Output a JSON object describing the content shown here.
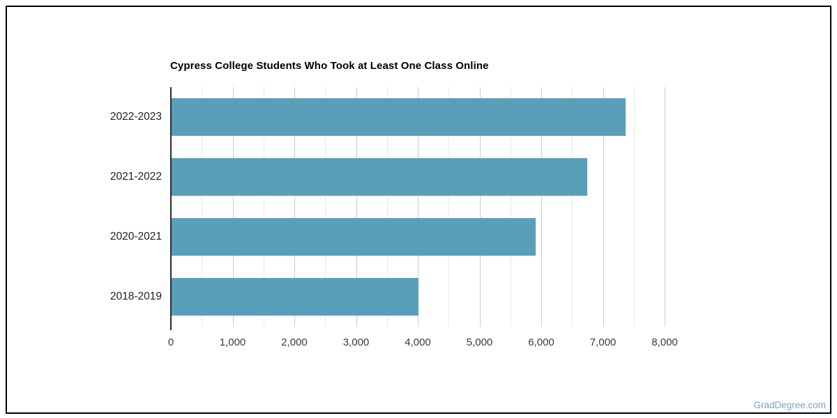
{
  "page": {
    "watermark": "GradDegree.com",
    "frame_border_color": "#000000",
    "background_color": "#ffffff"
  },
  "chart_data": {
    "type": "bar",
    "orientation": "horizontal",
    "title": "Cypress College Students Who Took at Least One Class Online",
    "categories": [
      "2022-2023",
      "2021-2022",
      "2020-2021",
      "2018-2019"
    ],
    "values": [
      7350,
      6730,
      5900,
      4000
    ],
    "xlabel": "",
    "ylabel": "",
    "xlim": [
      0,
      8000
    ],
    "xticks": [
      0,
      1000,
      2000,
      3000,
      4000,
      5000,
      6000,
      7000,
      8000
    ],
    "xtick_labels": [
      "0",
      "1,000",
      "2,000",
      "3,000",
      "4,000",
      "5,000",
      "6,000",
      "7,000",
      "8,000"
    ],
    "minor_grid_step": 500,
    "grid": true,
    "legend": "none",
    "bar_color": "#5A9FBA",
    "major_grid_color": "#cccccc",
    "minor_grid_color": "#e8e8e8",
    "axis_line_color": "#2b2b2b",
    "label_color": "#1f1f1f",
    "tick_label_color": "#3a3a3a",
    "title_color": "#000000"
  }
}
